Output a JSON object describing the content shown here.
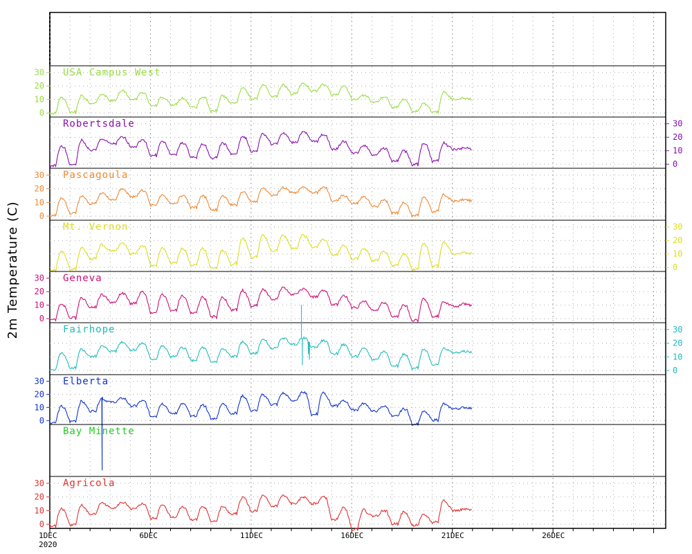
{
  "chart_data": {
    "type": "line",
    "ylabel": "2m Temperature (C)",
    "x_axis": {
      "range_days": [
        1,
        31.6
      ],
      "ticks": [
        {
          "day": 1,
          "label": "1DEC",
          "sublabel": "2020"
        },
        {
          "day": 6,
          "label": "6DEC"
        },
        {
          "day": 11,
          "label": "11DEC"
        },
        {
          "day": 16,
          "label": "16DEC"
        },
        {
          "day": 21,
          "label": "21DEC"
        },
        {
          "day": 26,
          "label": "26DEC"
        }
      ]
    },
    "y_ticks": [
      0,
      10,
      20,
      30
    ],
    "grid": true,
    "stations": [
      {
        "name": "USA Campus West",
        "color": "#99dd44",
        "axis_side": "left",
        "ylim": [
          -3,
          35
        ],
        "daily": [
          {
            "min": -1,
            "max": 12
          },
          {
            "min": 0,
            "max": 13
          },
          {
            "min": 7,
            "max": 14
          },
          {
            "min": 9,
            "max": 17
          },
          {
            "min": 10,
            "max": 15
          },
          {
            "min": 5,
            "max": 12
          },
          {
            "min": 6,
            "max": 11
          },
          {
            "min": 4,
            "max": 12
          },
          {
            "min": 1,
            "max": 13
          },
          {
            "min": 7,
            "max": 19
          },
          {
            "min": 10,
            "max": 21
          },
          {
            "min": 12,
            "max": 21
          },
          {
            "min": 14,
            "max": 22
          },
          {
            "min": 16,
            "max": 21
          },
          {
            "min": 13,
            "max": 20
          },
          {
            "min": 10,
            "max": 13
          },
          {
            "min": 8,
            "max": 12
          },
          {
            "min": 4,
            "max": 10
          },
          {
            "min": 1,
            "max": 7
          },
          {
            "min": 0,
            "max": 16
          },
          {
            "min": 10,
            "max": 11
          }
        ]
      },
      {
        "name": "Robertsdale",
        "color": "#8811aa",
        "axis_side": "right",
        "ylim": [
          -3,
          35
        ],
        "daily": [
          {
            "min": -2,
            "max": 14
          },
          {
            "min": -1,
            "max": 18
          },
          {
            "min": 10,
            "max": 19
          },
          {
            "min": 15,
            "max": 20
          },
          {
            "min": 13,
            "max": 18
          },
          {
            "min": 6,
            "max": 17
          },
          {
            "min": 7,
            "max": 16
          },
          {
            "min": 5,
            "max": 15
          },
          {
            "min": 4,
            "max": 16
          },
          {
            "min": 7,
            "max": 21
          },
          {
            "min": 9,
            "max": 23
          },
          {
            "min": 15,
            "max": 23
          },
          {
            "min": 16,
            "max": 24
          },
          {
            "min": 17,
            "max": 22
          },
          {
            "min": 11,
            "max": 17
          },
          {
            "min": 8,
            "max": 14
          },
          {
            "min": 7,
            "max": 12
          },
          {
            "min": 2,
            "max": 10
          },
          {
            "min": -1,
            "max": 16
          },
          {
            "min": 2,
            "max": 16
          },
          {
            "min": 11,
            "max": 12
          }
        ]
      },
      {
        "name": "Pascagoula",
        "color": "#ee8833",
        "axis_side": "left",
        "ylim": [
          -3,
          35
        ],
        "daily": [
          {
            "min": 0,
            "max": 13
          },
          {
            "min": 2,
            "max": 15
          },
          {
            "min": 9,
            "max": 17
          },
          {
            "min": 12,
            "max": 20
          },
          {
            "min": 14,
            "max": 19
          },
          {
            "min": 8,
            "max": 15
          },
          {
            "min": 9,
            "max": 15
          },
          {
            "min": 6,
            "max": 15
          },
          {
            "min": 4,
            "max": 15
          },
          {
            "min": 8,
            "max": 18
          },
          {
            "min": 10,
            "max": 21
          },
          {
            "min": 15,
            "max": 21
          },
          {
            "min": 17,
            "max": 21
          },
          {
            "min": 17,
            "max": 21
          },
          {
            "min": 11,
            "max": 15
          },
          {
            "min": 9,
            "max": 14
          },
          {
            "min": 7,
            "max": 12
          },
          {
            "min": 2,
            "max": 10
          },
          {
            "min": 0,
            "max": 14
          },
          {
            "min": 3,
            "max": 16
          },
          {
            "min": 11,
            "max": 12
          }
        ]
      },
      {
        "name": "Mt. Vernon",
        "color": "#dddd22",
        "axis_side": "right",
        "ylim": [
          -3,
          35
        ],
        "daily": [
          {
            "min": -3,
            "max": 12
          },
          {
            "min": -2,
            "max": 15
          },
          {
            "min": 6,
            "max": 17
          },
          {
            "min": 12,
            "max": 18
          },
          {
            "min": 10,
            "max": 16
          },
          {
            "min": 1,
            "max": 15
          },
          {
            "min": 3,
            "max": 14
          },
          {
            "min": 1,
            "max": 14
          },
          {
            "min": -1,
            "max": 13
          },
          {
            "min": 2,
            "max": 22
          },
          {
            "min": 7,
            "max": 24
          },
          {
            "min": 12,
            "max": 24
          },
          {
            "min": 14,
            "max": 24
          },
          {
            "min": 15,
            "max": 21
          },
          {
            "min": 9,
            "max": 16
          },
          {
            "min": 6,
            "max": 14
          },
          {
            "min": 5,
            "max": 12
          },
          {
            "min": 1,
            "max": 10
          },
          {
            "min": -2,
            "max": 18
          },
          {
            "min": 0,
            "max": 19
          },
          {
            "min": 10,
            "max": 11
          }
        ]
      },
      {
        "name": "Geneva",
        "color": "#cc1177",
        "axis_side": "left",
        "ylim": [
          -3,
          35
        ],
        "daily": [
          {
            "min": -1,
            "max": 11
          },
          {
            "min": 0,
            "max": 16
          },
          {
            "min": 8,
            "max": 18
          },
          {
            "min": 12,
            "max": 19
          },
          {
            "min": 11,
            "max": 20
          },
          {
            "min": 4,
            "max": 18
          },
          {
            "min": 6,
            "max": 17
          },
          {
            "min": 4,
            "max": 16
          },
          {
            "min": 1,
            "max": 16
          },
          {
            "min": 6,
            "max": 21
          },
          {
            "min": 9,
            "max": 22
          },
          {
            "min": 14,
            "max": 23
          },
          {
            "min": 18,
            "max": 22
          },
          {
            "min": 16,
            "max": 21
          },
          {
            "min": 10,
            "max": 17
          },
          {
            "min": 8,
            "max": 13
          },
          {
            "min": 6,
            "max": 12
          },
          {
            "min": 1,
            "max": 10
          },
          {
            "min": -2,
            "max": 15
          },
          {
            "min": 1,
            "max": 13
          },
          {
            "min": 9,
            "max": 11
          }
        ]
      },
      {
        "name": "Fairhope",
        "color": "#22bbbb",
        "axis_side": "right",
        "ylim": [
          -3,
          35
        ],
        "daily": [
          {
            "min": 0,
            "max": 13
          },
          {
            "min": 1,
            "max": 16
          },
          {
            "min": 10,
            "max": 18
          },
          {
            "min": 14,
            "max": 21
          },
          {
            "min": 15,
            "max": 20
          },
          {
            "min": 8,
            "max": 18
          },
          {
            "min": 10,
            "max": 17
          },
          {
            "min": 7,
            "max": 17
          },
          {
            "min": 6,
            "max": 16
          },
          {
            "min": 10,
            "max": 21
          },
          {
            "min": 12,
            "max": 23
          },
          {
            "min": 16,
            "max": 24
          },
          {
            "min": 19,
            "max": 24
          },
          {
            "min": 17,
            "max": 22
          },
          {
            "min": 12,
            "max": 19
          },
          {
            "min": 10,
            "max": 16
          },
          {
            "min": 8,
            "max": 14
          },
          {
            "min": 3,
            "max": 12
          },
          {
            "min": 1,
            "max": 16
          },
          {
            "min": 4,
            "max": 17
          },
          {
            "min": 13,
            "max": 14
          }
        ],
        "spikes": [
          {
            "day": 13.5,
            "value": 48
          },
          {
            "day": 13.55,
            "value": 4
          },
          {
            "day": 13.85,
            "value": 12
          },
          {
            "day": 13.9,
            "value": 8
          }
        ]
      },
      {
        "name": "Elberta",
        "color": "#1133cc",
        "axis_side": "left",
        "ylim": [
          -3,
          35
        ],
        "daily": [
          {
            "min": -2,
            "max": 11
          },
          {
            "min": -1,
            "max": 15
          },
          {
            "min": 7,
            "max": 17
          },
          {
            "min": 14,
            "max": 17
          },
          {
            "min": 11,
            "max": 15
          },
          {
            "min": 3,
            "max": 13
          },
          {
            "min": 5,
            "max": 13
          },
          {
            "min": 3,
            "max": 12
          },
          {
            "min": 1,
            "max": 13
          },
          {
            "min": 5,
            "max": 19
          },
          {
            "min": 7,
            "max": 20
          },
          {
            "min": 12,
            "max": 21
          },
          {
            "min": 15,
            "max": 22
          },
          {
            "min": 4,
            "max": 22
          },
          {
            "min": 11,
            "max": 15
          },
          {
            "min": 8,
            "max": 13
          },
          {
            "min": 7,
            "max": 11
          },
          {
            "min": 3,
            "max": 9
          },
          {
            "min": -3,
            "max": 7
          },
          {
            "min": 0,
            "max": 13
          },
          {
            "min": 9,
            "max": 10
          }
        ],
        "spikes": [
          {
            "day": 3.6,
            "value": -38
          },
          {
            "day": 3.62,
            "value": 18
          }
        ]
      },
      {
        "name": "Bay Minette",
        "color": "#22cc22",
        "axis_side": "none",
        "ylim": [
          -3,
          35
        ],
        "daily": []
      },
      {
        "name": "Agricola",
        "color": "#dd3333",
        "axis_side": "left",
        "ylim": [
          -3,
          35
        ],
        "daily": [
          {
            "min": -2,
            "max": 12
          },
          {
            "min": -1,
            "max": 14
          },
          {
            "min": 7,
            "max": 16
          },
          {
            "min": 12,
            "max": 16
          },
          {
            "min": 11,
            "max": 15
          },
          {
            "min": 4,
            "max": 14
          },
          {
            "min": 5,
            "max": 13
          },
          {
            "min": 3,
            "max": 13
          },
          {
            "min": 2,
            "max": 13
          },
          {
            "min": 7,
            "max": 20
          },
          {
            "min": 9,
            "max": 21
          },
          {
            "min": 13,
            "max": 21
          },
          {
            "min": 15,
            "max": 20
          },
          {
            "min": 15,
            "max": 20
          },
          {
            "min": 3,
            "max": 12
          },
          {
            "min": -4,
            "max": 11
          },
          {
            "min": 6,
            "max": 10
          },
          {
            "min": 0,
            "max": 9
          },
          {
            "min": -1,
            "max": 7
          },
          {
            "min": 1,
            "max": 18
          },
          {
            "min": 10,
            "max": 11
          }
        ]
      }
    ]
  }
}
